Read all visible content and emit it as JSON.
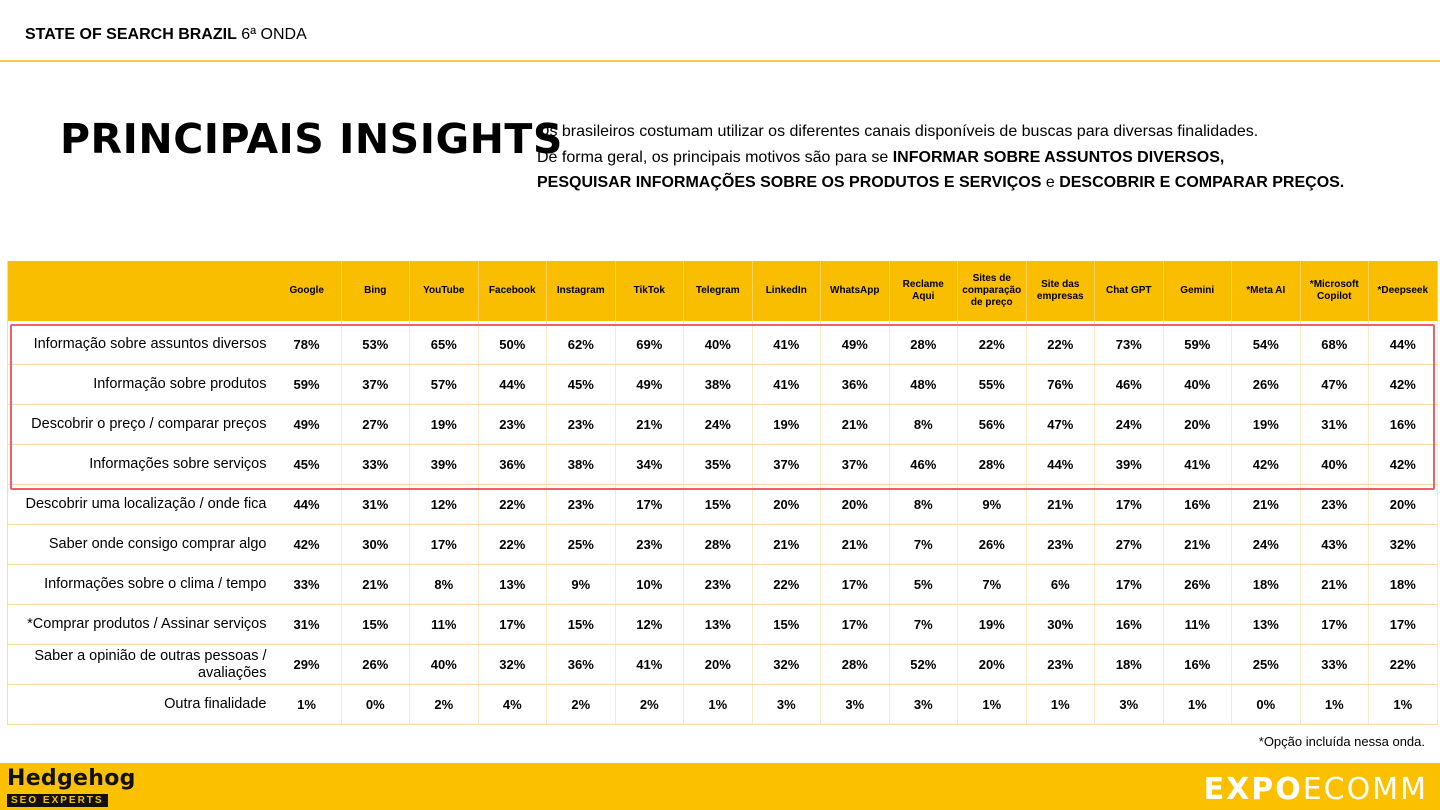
{
  "header": {
    "brand_bold": "STATE OF SEARCH BRAZIL",
    "brand_rest": " 6ª ONDA"
  },
  "title": "PRINCIPAIS INSIGHTS",
  "intro": {
    "line1": "Os brasileiros costumam utilizar os diferentes canais disponíveis de buscas para diversas finalidades.",
    "line2_normal": "De forma geral, os principais motivos são para se ",
    "line2_bold": "INFORMAR SOBRE ASSUNTOS DIVERSOS,",
    "line3_bold1": "PESQUISAR INFORMAÇÕES SOBRE OS PRODUTOS E SERVIÇOS",
    "line3_normal": " e ",
    "line3_bold2": "DESCOBRIR E COMPARAR PREÇOS."
  },
  "table": {
    "columns": [
      "Google",
      "Bing",
      "YouTube",
      "Facebook",
      "Instagram",
      "TikTok",
      "Telegram",
      "LinkedIn",
      "WhatsApp",
      "Reclame Aqui",
      "Sites de comparação de preço",
      "Site das empresas",
      "Chat GPT",
      "Gemini",
      "*Meta AI",
      "*Microsoft Copilot",
      "*Deepseek"
    ],
    "rows": [
      {
        "label": "Informação sobre assuntos diversos",
        "values": [
          "78%",
          "53%",
          "65%",
          "50%",
          "62%",
          "69%",
          "40%",
          "41%",
          "49%",
          "28%",
          "22%",
          "22%",
          "73%",
          "59%",
          "54%",
          "68%",
          "44%"
        ]
      },
      {
        "label": "Informação sobre produtos",
        "values": [
          "59%",
          "37%",
          "57%",
          "44%",
          "45%",
          "49%",
          "38%",
          "41%",
          "36%",
          "48%",
          "55%",
          "76%",
          "46%",
          "40%",
          "26%",
          "47%",
          "42%"
        ]
      },
      {
        "label": "Descobrir o preço / comparar preços",
        "values": [
          "49%",
          "27%",
          "19%",
          "23%",
          "23%",
          "21%",
          "24%",
          "19%",
          "21%",
          "8%",
          "56%",
          "47%",
          "24%",
          "20%",
          "19%",
          "31%",
          "16%"
        ]
      },
      {
        "label": "Informações sobre serviços",
        "values": [
          "45%",
          "33%",
          "39%",
          "36%",
          "38%",
          "34%",
          "35%",
          "37%",
          "37%",
          "46%",
          "28%",
          "44%",
          "39%",
          "41%",
          "42%",
          "40%",
          "42%"
        ]
      },
      {
        "label": "Descobrir uma localização / onde fica",
        "values": [
          "44%",
          "31%",
          "12%",
          "22%",
          "23%",
          "17%",
          "15%",
          "20%",
          "20%",
          "8%",
          "9%",
          "21%",
          "17%",
          "16%",
          "21%",
          "23%",
          "20%"
        ]
      },
      {
        "label": "Saber onde consigo comprar algo",
        "values": [
          "42%",
          "30%",
          "17%",
          "22%",
          "25%",
          "23%",
          "28%",
          "21%",
          "21%",
          "7%",
          "26%",
          "23%",
          "27%",
          "21%",
          "24%",
          "43%",
          "32%"
        ]
      },
      {
        "label": "Informações sobre o clima / tempo",
        "values": [
          "33%",
          "21%",
          "8%",
          "13%",
          "9%",
          "10%",
          "23%",
          "22%",
          "17%",
          "5%",
          "7%",
          "6%",
          "17%",
          "26%",
          "18%",
          "21%",
          "18%"
        ]
      },
      {
        "label": "*Comprar produtos / Assinar serviços",
        "values": [
          "31%",
          "15%",
          "11%",
          "17%",
          "15%",
          "12%",
          "13%",
          "15%",
          "17%",
          "7%",
          "19%",
          "30%",
          "16%",
          "11%",
          "13%",
          "17%",
          "17%"
        ]
      },
      {
        "label": "Saber a opinião de outras pessoas / avaliações",
        "values": [
          "29%",
          "26%",
          "40%",
          "32%",
          "36%",
          "41%",
          "20%",
          "32%",
          "28%",
          "52%",
          "20%",
          "23%",
          "18%",
          "16%",
          "25%",
          "33%",
          "22%"
        ]
      },
      {
        "label": "Outra finalidade",
        "values": [
          "1%",
          "0%",
          "2%",
          "4%",
          "2%",
          "2%",
          "1%",
          "3%",
          "3%",
          "3%",
          "1%",
          "1%",
          "3%",
          "1%",
          "0%",
          "1%",
          "1%"
        ]
      }
    ]
  },
  "footnote": "*Opção incluída nessa onda.",
  "footer": {
    "left_logo_name": "Hedgehog",
    "left_logo_sub": "SEO EXPERTS",
    "right_logo_bold": "EXPO",
    "right_logo_light": "ECOMM"
  },
  "colors": {
    "accent": "#f9be00",
    "highlight": "#f0606a"
  }
}
